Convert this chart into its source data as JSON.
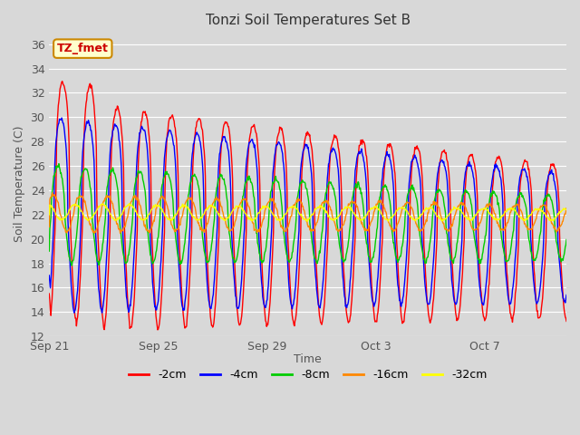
{
  "title": "Tonzi Soil Temperatures Set B",
  "xlabel": "Time",
  "ylabel": "Soil Temperature (C)",
  "ylim": [
    12,
    37
  ],
  "yticks": [
    12,
    14,
    16,
    18,
    20,
    22,
    24,
    26,
    28,
    30,
    32,
    34,
    36
  ],
  "xtick_labels": [
    "Sep 21",
    "Sep 25",
    "Sep 29",
    "Oct 3",
    "Oct 7"
  ],
  "xtick_days": [
    0,
    4,
    8,
    12,
    16
  ],
  "series_colors": [
    "#ff0000",
    "#0000ff",
    "#00cc00",
    "#ff8800",
    "#ffff00"
  ],
  "series_labels": [
    "-2cm",
    "-4cm",
    "-8cm",
    "-16cm",
    "-32cm"
  ],
  "legend_label": "TZ_fmet",
  "legend_bg": "#ffffcc",
  "legend_border": "#cc8800",
  "bg_color": "#d8d8d8",
  "plot_bg": "#d8d8d8",
  "grid_color": "#ffffff",
  "annotation_color": "#cc0000",
  "total_days": 19,
  "points_per_day": 48
}
